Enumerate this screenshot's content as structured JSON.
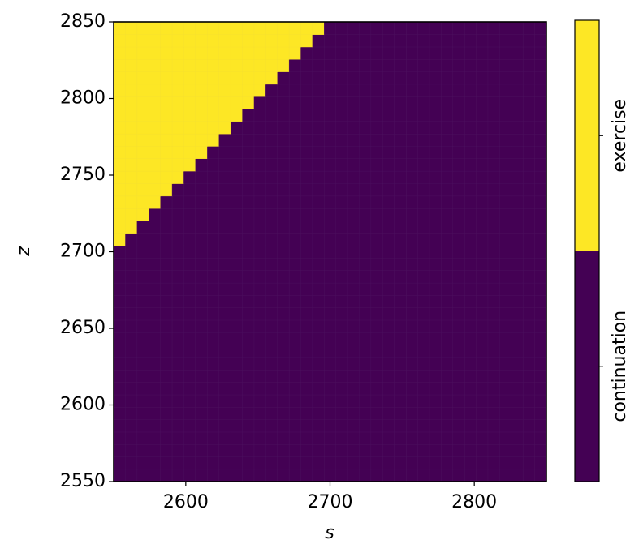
{
  "chart_data": {
    "type": "heatmap",
    "xlabel": "s",
    "ylabel": "z",
    "xlim": [
      2550,
      2850
    ],
    "ylim": [
      2550,
      2850
    ],
    "xticks": [
      2600,
      2700,
      2800
    ],
    "yticks": [
      2550,
      2600,
      2650,
      2700,
      2750,
      2800,
      2850
    ],
    "x": [
      2554.1,
      2562.2,
      2570.3,
      2578.4,
      2586.5,
      2594.6,
      2602.7,
      2610.8,
      2619.0,
      2627.1,
      2635.2,
      2643.3,
      2651.4,
      2659.5,
      2667.6,
      2675.7,
      2683.8,
      2691.9,
      2700.0,
      2708.1,
      2716.2,
      2724.3,
      2732.4,
      2740.5,
      2748.6,
      2756.8,
      2764.9,
      2773.0,
      2781.1,
      2789.2,
      2797.3,
      2805.4,
      2813.5,
      2821.6,
      2829.7,
      2837.8,
      2845.9
    ],
    "y": [
      2554.1,
      2562.2,
      2570.3,
      2578.4,
      2586.5,
      2594.6,
      2602.7,
      2610.8,
      2619.0,
      2627.1,
      2635.2,
      2643.3,
      2651.4,
      2659.5,
      2667.6,
      2675.7,
      2683.8,
      2691.9,
      2700.0,
      2708.1,
      2716.2,
      2724.3,
      2732.4,
      2740.5,
      2748.6,
      2756.8,
      2764.9,
      2773.0,
      2781.1,
      2789.2,
      2797.3,
      2805.4,
      2813.5,
      2821.6,
      2829.7,
      2837.8,
      2845.9
    ],
    "z": [
      [
        0,
        0,
        0,
        0,
        0,
        0,
        0,
        0,
        0,
        0,
        0,
        0,
        0,
        0,
        0,
        0,
        0,
        0,
        0,
        0,
        0,
        0,
        0,
        0,
        0,
        0,
        0,
        0,
        0,
        0,
        0,
        0,
        0,
        0,
        0,
        0,
        0
      ],
      [
        0,
        0,
        0,
        0,
        0,
        0,
        0,
        0,
        0,
        0,
        0,
        0,
        0,
        0,
        0,
        0,
        0,
        0,
        0,
        0,
        0,
        0,
        0,
        0,
        0,
        0,
        0,
        0,
        0,
        0,
        0,
        0,
        0,
        0,
        0,
        0,
        0
      ],
      [
        0,
        0,
        0,
        0,
        0,
        0,
        0,
        0,
        0,
        0,
        0,
        0,
        0,
        0,
        0,
        0,
        0,
        0,
        0,
        0,
        0,
        0,
        0,
        0,
        0,
        0,
        0,
        0,
        0,
        0,
        0,
        0,
        0,
        0,
        0,
        0,
        0
      ],
      [
        0,
        0,
        0,
        0,
        0,
        0,
        0,
        0,
        0,
        0,
        0,
        0,
        0,
        0,
        0,
        0,
        0,
        0,
        0,
        0,
        0,
        0,
        0,
        0,
        0,
        0,
        0,
        0,
        0,
        0,
        0,
        0,
        0,
        0,
        0,
        0,
        0
      ],
      [
        0,
        0,
        0,
        0,
        0,
        0,
        0,
        0,
        0,
        0,
        0,
        0,
        0,
        0,
        0,
        0,
        0,
        0,
        0,
        0,
        0,
        0,
        0,
        0,
        0,
        0,
        0,
        0,
        0,
        0,
        0,
        0,
        0,
        0,
        0,
        0,
        0
      ],
      [
        0,
        0,
        0,
        0,
        0,
        0,
        0,
        0,
        0,
        0,
        0,
        0,
        0,
        0,
        0,
        0,
        0,
        0,
        0,
        0,
        0,
        0,
        0,
        0,
        0,
        0,
        0,
        0,
        0,
        0,
        0,
        0,
        0,
        0,
        0,
        0,
        0
      ],
      [
        0,
        0,
        0,
        0,
        0,
        0,
        0,
        0,
        0,
        0,
        0,
        0,
        0,
        0,
        0,
        0,
        0,
        0,
        0,
        0,
        0,
        0,
        0,
        0,
        0,
        0,
        0,
        0,
        0,
        0,
        0,
        0,
        0,
        0,
        0,
        0,
        0
      ],
      [
        0,
        0,
        0,
        0,
        0,
        0,
        0,
        0,
        0,
        0,
        0,
        0,
        0,
        0,
        0,
        0,
        0,
        0,
        0,
        0,
        0,
        0,
        0,
        0,
        0,
        0,
        0,
        0,
        0,
        0,
        0,
        0,
        0,
        0,
        0,
        0,
        0
      ],
      [
        0,
        0,
        0,
        0,
        0,
        0,
        0,
        0,
        0,
        0,
        0,
        0,
        0,
        0,
        0,
        0,
        0,
        0,
        0,
        0,
        0,
        0,
        0,
        0,
        0,
        0,
        0,
        0,
        0,
        0,
        0,
        0,
        0,
        0,
        0,
        0,
        0
      ],
      [
        0,
        0,
        0,
        0,
        0,
        0,
        0,
        0,
        0,
        0,
        0,
        0,
        0,
        0,
        0,
        0,
        0,
        0,
        0,
        0,
        0,
        0,
        0,
        0,
        0,
        0,
        0,
        0,
        0,
        0,
        0,
        0,
        0,
        0,
        0,
        0,
        0
      ],
      [
        0,
        0,
        0,
        0,
        0,
        0,
        0,
        0,
        0,
        0,
        0,
        0,
        0,
        0,
        0,
        0,
        0,
        0,
        0,
        0,
        0,
        0,
        0,
        0,
        0,
        0,
        0,
        0,
        0,
        0,
        0,
        0,
        0,
        0,
        0,
        0,
        0
      ],
      [
        0,
        0,
        0,
        0,
        0,
        0,
        0,
        0,
        0,
        0,
        0,
        0,
        0,
        0,
        0,
        0,
        0,
        0,
        0,
        0,
        0,
        0,
        0,
        0,
        0,
        0,
        0,
        0,
        0,
        0,
        0,
        0,
        0,
        0,
        0,
        0,
        0
      ],
      [
        0,
        0,
        0,
        0,
        0,
        0,
        0,
        0,
        0,
        0,
        0,
        0,
        0,
        0,
        0,
        0,
        0,
        0,
        0,
        0,
        0,
        0,
        0,
        0,
        0,
        0,
        0,
        0,
        0,
        0,
        0,
        0,
        0,
        0,
        0,
        0,
        0
      ],
      [
        0,
        0,
        0,
        0,
        0,
        0,
        0,
        0,
        0,
        0,
        0,
        0,
        0,
        0,
        0,
        0,
        0,
        0,
        0,
        0,
        0,
        0,
        0,
        0,
        0,
        0,
        0,
        0,
        0,
        0,
        0,
        0,
        0,
        0,
        0,
        0,
        0
      ],
      [
        0,
        0,
        0,
        0,
        0,
        0,
        0,
        0,
        0,
        0,
        0,
        0,
        0,
        0,
        0,
        0,
        0,
        0,
        0,
        0,
        0,
        0,
        0,
        0,
        0,
        0,
        0,
        0,
        0,
        0,
        0,
        0,
        0,
        0,
        0,
        0,
        0
      ],
      [
        0,
        0,
        0,
        0,
        0,
        0,
        0,
        0,
        0,
        0,
        0,
        0,
        0,
        0,
        0,
        0,
        0,
        0,
        0,
        0,
        0,
        0,
        0,
        0,
        0,
        0,
        0,
        0,
        0,
        0,
        0,
        0,
        0,
        0,
        0,
        0,
        0
      ],
      [
        0,
        0,
        0,
        0,
        0,
        0,
        0,
        0,
        0,
        0,
        0,
        0,
        0,
        0,
        0,
        0,
        0,
        0,
        0,
        0,
        0,
        0,
        0,
        0,
        0,
        0,
        0,
        0,
        0,
        0,
        0,
        0,
        0,
        0,
        0,
        0,
        0
      ],
      [
        0,
        0,
        0,
        0,
        0,
        0,
        0,
        0,
        0,
        0,
        0,
        0,
        0,
        0,
        0,
        0,
        0,
        0,
        0,
        0,
        0,
        0,
        0,
        0,
        0,
        0,
        0,
        0,
        0,
        0,
        0,
        0,
        0,
        0,
        0,
        0,
        0
      ],
      [
        0,
        0,
        0,
        0,
        0,
        0,
        0,
        0,
        0,
        0,
        0,
        0,
        0,
        0,
        0,
        0,
        0,
        0,
        0,
        0,
        0,
        0,
        0,
        0,
        0,
        0,
        0,
        0,
        0,
        0,
        0,
        0,
        0,
        0,
        0,
        0,
        0
      ],
      [
        1,
        0,
        0,
        0,
        0,
        0,
        0,
        0,
        0,
        0,
        0,
        0,
        0,
        0,
        0,
        0,
        0,
        0,
        0,
        0,
        0,
        0,
        0,
        0,
        0,
        0,
        0,
        0,
        0,
        0,
        0,
        0,
        0,
        0,
        0,
        0,
        0
      ],
      [
        1,
        1,
        0,
        0,
        0,
        0,
        0,
        0,
        0,
        0,
        0,
        0,
        0,
        0,
        0,
        0,
        0,
        0,
        0,
        0,
        0,
        0,
        0,
        0,
        0,
        0,
        0,
        0,
        0,
        0,
        0,
        0,
        0,
        0,
        0,
        0,
        0
      ],
      [
        1,
        1,
        1,
        0,
        0,
        0,
        0,
        0,
        0,
        0,
        0,
        0,
        0,
        0,
        0,
        0,
        0,
        0,
        0,
        0,
        0,
        0,
        0,
        0,
        0,
        0,
        0,
        0,
        0,
        0,
        0,
        0,
        0,
        0,
        0,
        0,
        0
      ],
      [
        1,
        1,
        1,
        1,
        0,
        0,
        0,
        0,
        0,
        0,
        0,
        0,
        0,
        0,
        0,
        0,
        0,
        0,
        0,
        0,
        0,
        0,
        0,
        0,
        0,
        0,
        0,
        0,
        0,
        0,
        0,
        0,
        0,
        0,
        0,
        0,
        0
      ],
      [
        1,
        1,
        1,
        1,
        1,
        0,
        0,
        0,
        0,
        0,
        0,
        0,
        0,
        0,
        0,
        0,
        0,
        0,
        0,
        0,
        0,
        0,
        0,
        0,
        0,
        0,
        0,
        0,
        0,
        0,
        0,
        0,
        0,
        0,
        0,
        0,
        0
      ],
      [
        1,
        1,
        1,
        1,
        1,
        1,
        0,
        0,
        0,
        0,
        0,
        0,
        0,
        0,
        0,
        0,
        0,
        0,
        0,
        0,
        0,
        0,
        0,
        0,
        0,
        0,
        0,
        0,
        0,
        0,
        0,
        0,
        0,
        0,
        0,
        0,
        0
      ],
      [
        1,
        1,
        1,
        1,
        1,
        1,
        1,
        0,
        0,
        0,
        0,
        0,
        0,
        0,
        0,
        0,
        0,
        0,
        0,
        0,
        0,
        0,
        0,
        0,
        0,
        0,
        0,
        0,
        0,
        0,
        0,
        0,
        0,
        0,
        0,
        0,
        0
      ],
      [
        1,
        1,
        1,
        1,
        1,
        1,
        1,
        1,
        0,
        0,
        0,
        0,
        0,
        0,
        0,
        0,
        0,
        0,
        0,
        0,
        0,
        0,
        0,
        0,
        0,
        0,
        0,
        0,
        0,
        0,
        0,
        0,
        0,
        0,
        0,
        0,
        0
      ],
      [
        1,
        1,
        1,
        1,
        1,
        1,
        1,
        1,
        1,
        0,
        0,
        0,
        0,
        0,
        0,
        0,
        0,
        0,
        0,
        0,
        0,
        0,
        0,
        0,
        0,
        0,
        0,
        0,
        0,
        0,
        0,
        0,
        0,
        0,
        0,
        0,
        0
      ],
      [
        1,
        1,
        1,
        1,
        1,
        1,
        1,
        1,
        1,
        1,
        0,
        0,
        0,
        0,
        0,
        0,
        0,
        0,
        0,
        0,
        0,
        0,
        0,
        0,
        0,
        0,
        0,
        0,
        0,
        0,
        0,
        0,
        0,
        0,
        0,
        0,
        0
      ],
      [
        1,
        1,
        1,
        1,
        1,
        1,
        1,
        1,
        1,
        1,
        1,
        0,
        0,
        0,
        0,
        0,
        0,
        0,
        0,
        0,
        0,
        0,
        0,
        0,
        0,
        0,
        0,
        0,
        0,
        0,
        0,
        0,
        0,
        0,
        0,
        0,
        0
      ],
      [
        1,
        1,
        1,
        1,
        1,
        1,
        1,
        1,
        1,
        1,
        1,
        1,
        0,
        0,
        0,
        0,
        0,
        0,
        0,
        0,
        0,
        0,
        0,
        0,
        0,
        0,
        0,
        0,
        0,
        0,
        0,
        0,
        0,
        0,
        0,
        0,
        0
      ],
      [
        1,
        1,
        1,
        1,
        1,
        1,
        1,
        1,
        1,
        1,
        1,
        1,
        1,
        0,
        0,
        0,
        0,
        0,
        0,
        0,
        0,
        0,
        0,
        0,
        0,
        0,
        0,
        0,
        0,
        0,
        0,
        0,
        0,
        0,
        0,
        0,
        0
      ],
      [
        1,
        1,
        1,
        1,
        1,
        1,
        1,
        1,
        1,
        1,
        1,
        1,
        1,
        1,
        0,
        0,
        0,
        0,
        0,
        0,
        0,
        0,
        0,
        0,
        0,
        0,
        0,
        0,
        0,
        0,
        0,
        0,
        0,
        0,
        0,
        0,
        0
      ],
      [
        1,
        1,
        1,
        1,
        1,
        1,
        1,
        1,
        1,
        1,
        1,
        1,
        1,
        1,
        1,
        0,
        0,
        0,
        0,
        0,
        0,
        0,
        0,
        0,
        0,
        0,
        0,
        0,
        0,
        0,
        0,
        0,
        0,
        0,
        0,
        0,
        0
      ],
      [
        1,
        1,
        1,
        1,
        1,
        1,
        1,
        1,
        1,
        1,
        1,
        1,
        1,
        1,
        1,
        1,
        0,
        0,
        0,
        0,
        0,
        0,
        0,
        0,
        0,
        0,
        0,
        0,
        0,
        0,
        0,
        0,
        0,
        0,
        0,
        0,
        0
      ],
      [
        1,
        1,
        1,
        1,
        1,
        1,
        1,
        1,
        1,
        1,
        1,
        1,
        1,
        1,
        1,
        1,
        1,
        0,
        0,
        0,
        0,
        0,
        0,
        0,
        0,
        0,
        0,
        0,
        0,
        0,
        0,
        0,
        0,
        0,
        0,
        0,
        0
      ],
      [
        1,
        1,
        1,
        1,
        1,
        1,
        1,
        1,
        1,
        1,
        1,
        1,
        1,
        1,
        1,
        1,
        1,
        1,
        0,
        0,
        0,
        0,
        0,
        0,
        0,
        0,
        0,
        0,
        0,
        0,
        0,
        0,
        0,
        0,
        0,
        0,
        0
      ]
    ],
    "clim": [
      -0.5,
      1.5
    ],
    "cticks": [
      {
        "value": 0,
        "label": "continuation"
      },
      {
        "value": 1,
        "label": "exercise"
      }
    ],
    "colors": [
      "#440154",
      "#fde725"
    ]
  }
}
